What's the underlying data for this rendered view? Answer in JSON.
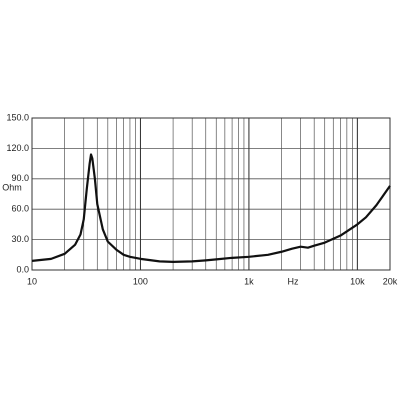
{
  "chart_data": {
    "type": "line",
    "x_label": "Hz",
    "y_label": "Ohm",
    "x": [
      10,
      15,
      20,
      25,
      28,
      30,
      32,
      34,
      35,
      36,
      38,
      40,
      45,
      50,
      60,
      70,
      80,
      100,
      150,
      200,
      300,
      400,
      500,
      700,
      1000,
      1500,
      2000,
      2500,
      3000,
      3500,
      4000,
      5000,
      7000,
      10000,
      12000,
      15000,
      20000
    ],
    "values": [
      9,
      11,
      16,
      25,
      35,
      50,
      80,
      105,
      114,
      110,
      90,
      65,
      40,
      28,
      20,
      15,
      13,
      11,
      8.5,
      8,
      8.5,
      9.5,
      10.5,
      12,
      13,
      15,
      18,
      21,
      23,
      22,
      24,
      27,
      34,
      45,
      52,
      64,
      83
    ],
    "color": "#111111",
    "xscale": "log",
    "xlim": [
      10,
      20000
    ],
    "ylim": [
      0,
      150
    ],
    "xticks": [
      10,
      100,
      {
        "value": 1000,
        "label": "1k"
      },
      {
        "value": 10000,
        "label": "10k"
      },
      {
        "value": 20000,
        "label": "20k"
      }
    ],
    "yticks": [
      {
        "value": 0,
        "label": "0.0"
      },
      {
        "value": 30,
        "label": "30.0"
      },
      {
        "value": 60,
        "label": "60.0"
      },
      {
        "value": 90,
        "label": "90.0"
      },
      {
        "value": 120,
        "label": "120.0"
      },
      {
        "value": 150,
        "label": "150.0"
      }
    ],
    "grid": true,
    "minor_grid": true
  }
}
